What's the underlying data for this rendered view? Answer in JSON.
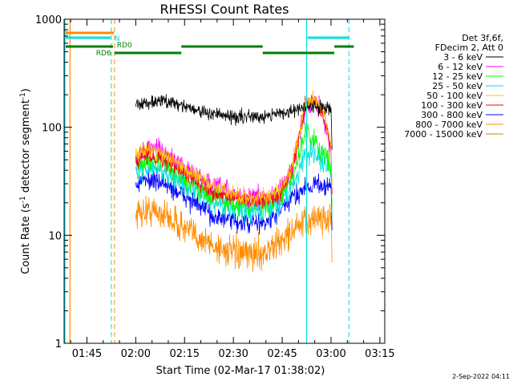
{
  "chart_data": {
    "type": "line",
    "title": "RHESSI Count Rates",
    "xlabel": "Start Time (02-Mar-17 01:38:02)",
    "ylabel_main": "Count Rate (s",
    "ylabel_sup1": "-1",
    "ylabel_mid": " detector segment",
    "ylabel_sup2": "-1",
    "ylabel_end": ")",
    "yscale": "log",
    "ylim": [
      1,
      1000
    ],
    "xlim_minutes": [
      0,
      98.5
    ],
    "x_ticks": [
      {
        "label": "01:45",
        "minutes": 7
      },
      {
        "label": "02:00",
        "minutes": 22
      },
      {
        "label": "02:15",
        "minutes": 37
      },
      {
        "label": "02:30",
        "minutes": 52
      },
      {
        "label": "02:45",
        "minutes": 67
      },
      {
        "label": "03:00",
        "minutes": 82
      },
      {
        "label": "03:15",
        "minutes": 97
      }
    ],
    "y_ticks": [
      {
        "label": "1",
        "value": 1
      },
      {
        "label": "10",
        "value": 10
      },
      {
        "label": "100",
        "value": 100
      },
      {
        "label": "1000",
        "value": 1000
      }
    ],
    "legend_header": [
      "Det 3f,6f,",
      "FDecim 2, Att 0"
    ],
    "series": [
      {
        "name": "3 - 6 keV",
        "color": "#000000",
        "base": [
          [
            22,
            160
          ],
          [
            28,
            175
          ],
          [
            34,
            170
          ],
          [
            42,
            140
          ],
          [
            50,
            125
          ],
          [
            58,
            125
          ],
          [
            66,
            135
          ],
          [
            72,
            145
          ],
          [
            76,
            155
          ],
          [
            80,
            150
          ],
          [
            82,
            155
          ]
        ],
        "noise": 0.06
      },
      {
        "name": "6 - 12 keV",
        "color": "#ff00ff",
        "base": [
          [
            22,
            55
          ],
          [
            26,
            65
          ],
          [
            30,
            60
          ],
          [
            38,
            40
          ],
          [
            46,
            28
          ],
          [
            54,
            23
          ],
          [
            62,
            22
          ],
          [
            66,
            25
          ],
          [
            70,
            40
          ],
          [
            74,
            150
          ],
          [
            77,
            180
          ],
          [
            80,
            120
          ],
          [
            82,
            60
          ]
        ],
        "noise": 0.09
      },
      {
        "name": "12 - 25 keV",
        "color": "#00ff00",
        "base": [
          [
            22,
            45
          ],
          [
            26,
            50
          ],
          [
            30,
            48
          ],
          [
            38,
            32
          ],
          [
            46,
            23
          ],
          [
            54,
            19
          ],
          [
            62,
            19
          ],
          [
            66,
            22
          ],
          [
            70,
            33
          ],
          [
            74,
            90
          ],
          [
            77,
            75
          ],
          [
            80,
            55
          ],
          [
            82,
            45
          ]
        ],
        "noise": 0.1
      },
      {
        "name": "25 - 50 keV",
        "color": "#00e0e0",
        "base": [
          [
            22,
            40
          ],
          [
            26,
            42
          ],
          [
            30,
            40
          ],
          [
            38,
            28
          ],
          [
            46,
            20
          ],
          [
            54,
            17
          ],
          [
            62,
            17
          ],
          [
            66,
            20
          ],
          [
            70,
            28
          ],
          [
            74,
            55
          ],
          [
            77,
            60
          ],
          [
            80,
            45
          ],
          [
            82,
            38
          ]
        ],
        "noise": 0.1
      },
      {
        "name": "50 - 100 keV",
        "color": "#ffc000",
        "base": [
          [
            22,
            58
          ],
          [
            26,
            62
          ],
          [
            30,
            58
          ],
          [
            38,
            40
          ],
          [
            46,
            28
          ],
          [
            54,
            23
          ],
          [
            62,
            22
          ],
          [
            66,
            25
          ],
          [
            70,
            42
          ],
          [
            74,
            160
          ],
          [
            77,
            185
          ],
          [
            80,
            130
          ],
          [
            82,
            70
          ]
        ],
        "noise": 0.07
      },
      {
        "name": "100 - 300 keV",
        "color": "#ff0000",
        "base": [
          [
            22,
            50
          ],
          [
            26,
            55
          ],
          [
            30,
            52
          ],
          [
            38,
            36
          ],
          [
            46,
            25
          ],
          [
            54,
            21
          ],
          [
            62,
            21
          ],
          [
            66,
            24
          ],
          [
            70,
            40
          ],
          [
            74,
            155
          ],
          [
            77,
            175
          ],
          [
            80,
            120
          ],
          [
            82,
            60
          ]
        ],
        "noise": 0.07
      },
      {
        "name": "300 - 800 keV",
        "color": "#0000ff",
        "base": [
          [
            22,
            30
          ],
          [
            26,
            33
          ],
          [
            30,
            31
          ],
          [
            38,
            22
          ],
          [
            46,
            15
          ],
          [
            54,
            13
          ],
          [
            62,
            13
          ],
          [
            66,
            16
          ],
          [
            70,
            22
          ],
          [
            74,
            28
          ],
          [
            78,
            30
          ],
          [
            82,
            28
          ]
        ],
        "noise": 0.09
      },
      {
        "name": "800 - 7000 keV",
        "color": "#ff8c00",
        "base": [
          [
            22,
            16
          ],
          [
            26,
            17
          ],
          [
            30,
            16
          ],
          [
            38,
            11
          ],
          [
            46,
            8
          ],
          [
            54,
            6.5
          ],
          [
            62,
            7
          ],
          [
            66,
            8.5
          ],
          [
            70,
            11
          ],
          [
            74,
            13
          ],
          [
            78,
            15
          ],
          [
            82,
            14
          ]
        ],
        "noise": 0.14
      },
      {
        "name": "7000 - 15000 keV",
        "color": "#c08020",
        "base": [],
        "noise": 0
      }
    ],
    "annotations": {
      "attenuator_labels": [
        "RD0",
        "RD6"
      ],
      "flag_letters": [
        "S",
        "N"
      ],
      "vertical_markers_minutes": [
        0,
        14.5,
        15.5,
        74.5,
        87.5
      ]
    }
  },
  "footer": {
    "timestamp": "2-Sep-2022 04:11"
  }
}
